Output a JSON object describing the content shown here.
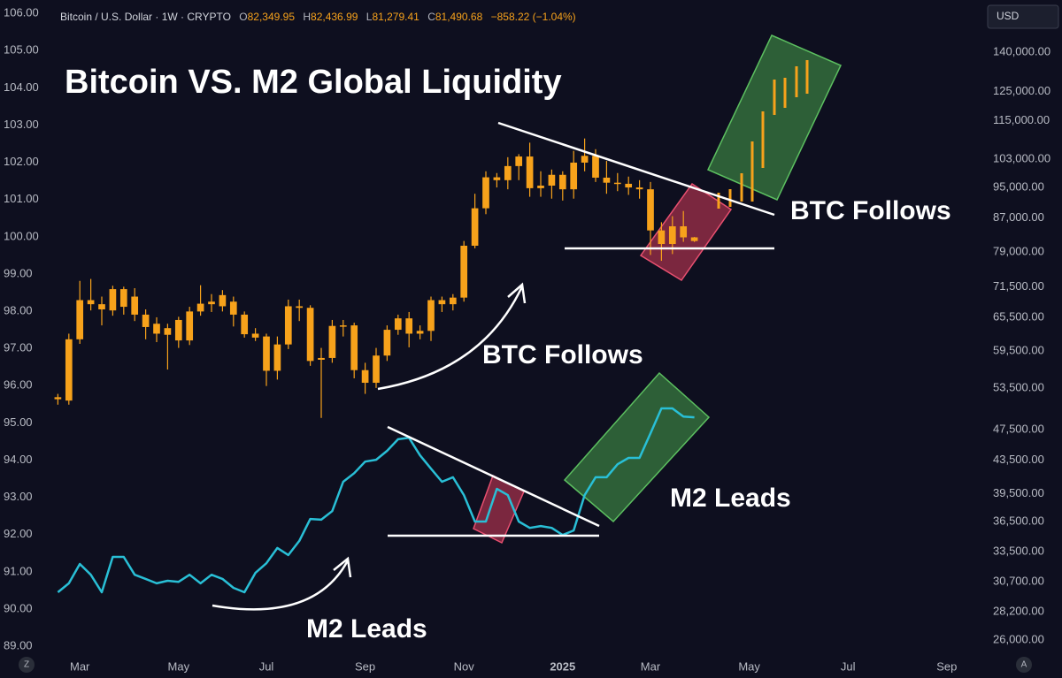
{
  "chart_data": {
    "type": "candlestick",
    "title": "Bitcoin VS. M2 Global Liquidity",
    "header": {
      "symbol": "Bitcoin / U.S. Dollar · 1W · CRYPTO",
      "ohlc": [
        {
          "key": "O",
          "value": "82,349.95"
        },
        {
          "key": "H",
          "value": "82,436.99"
        },
        {
          "key": "L",
          "value": "81,279.41"
        },
        {
          "key": "C",
          "value": "81,490.68"
        }
      ],
      "change": "−858.22 (−1.04%)"
    },
    "currency": "USD",
    "corner_buttons": [
      "Z",
      "A"
    ],
    "annotations": [
      "BTC Follows",
      "BTC Follows",
      "M2 Leads",
      "M2 Leads"
    ],
    "categories": [
      null,
      null,
      null,
      "Mar",
      null,
      null,
      null,
      null,
      null,
      null,
      null,
      null,
      "May",
      null,
      null,
      null,
      null,
      null,
      null,
      null,
      "Jul",
      null,
      null,
      null,
      null,
      null,
      null,
      null,
      null,
      "Sep",
      null,
      null,
      null,
      null,
      null,
      null,
      null,
      null,
      "Nov",
      null,
      null,
      null,
      null,
      null,
      null,
      null,
      null,
      "2025",
      null,
      null,
      null,
      null,
      null,
      null,
      null,
      "Mar",
      null,
      null,
      null,
      null,
      null,
      null,
      null,
      null,
      "May",
      null,
      null,
      null,
      null,
      null,
      null,
      null,
      null,
      "Jul",
      null,
      null,
      null,
      null,
      null,
      null,
      null,
      null,
      "Sep",
      null,
      null,
      null
    ],
    "candles": {
      "color": "#f7a21b",
      "axis": "y2",
      "open": [
        null,
        51800,
        51600,
        61500,
        68800,
        68000,
        66800,
        71000,
        69500,
        66000,
        64300,
        63500,
        65000,
        61300,
        66600,
        68000,
        69800,
        68500,
        66000,
        62500,
        62000,
        56200,
        60600,
        67600,
        67300,
        58000,
        58300,
        63900,
        64000,
        56300,
        54300,
        58700,
        63200,
        65300,
        62500,
        63000,
        68800,
        68000,
        69300,
        80400,
        89500,
        97800,
        97000,
        101000,
        103800,
        94800,
        95500,
        98500,
        94500,
        102000,
        104000,
        97700,
        96300,
        96000,
        95000,
        94500,
        84000,
        80800,
        85000,
        82349.95,
        null,
        null,
        null,
        null,
        null,
        null,
        null,
        null,
        null,
        null,
        null,
        null,
        null,
        null,
        null,
        null,
        null,
        null,
        null,
        null,
        null,
        null,
        null,
        null,
        null,
        null
      ],
      "high": [
        null,
        52600,
        62500,
        72700,
        73100,
        69500,
        71700,
        71500,
        71200,
        67000,
        65500,
        64300,
        65600,
        67500,
        71800,
        70000,
        70800,
        69500,
        66600,
        63500,
        62500,
        62000,
        68900,
        68900,
        67800,
        60000,
        65000,
        65000,
        64500,
        57500,
        60000,
        64000,
        66000,
        66500,
        64000,
        69500,
        69500,
        70000,
        81500,
        93300,
        99500,
        99000,
        103600,
        104500,
        108000,
        99500,
        100000,
        99500,
        105500,
        109300,
        106000,
        102500,
        99000,
        98000,
        97000,
        96500,
        86000,
        87500,
        88800,
        82436.99,
        null,
        null,
        null,
        null,
        null,
        null,
        null,
        null,
        null,
        null,
        null,
        null,
        null,
        null,
        null,
        null,
        null,
        null,
        null,
        null,
        null,
        null,
        null,
        null,
        null,
        null
      ],
      "low": [
        null,
        51000,
        51000,
        60700,
        66800,
        64000,
        65800,
        66000,
        64800,
        61500,
        61000,
        56400,
        60000,
        60500,
        65800,
        66500,
        66600,
        63800,
        61800,
        61200,
        53800,
        54800,
        59800,
        64800,
        57000,
        49100,
        57500,
        62000,
        55000,
        52600,
        53500,
        57800,
        62300,
        60100,
        61500,
        61200,
        66500,
        66800,
        68500,
        79800,
        88000,
        95000,
        94500,
        97000,
        92500,
        92500,
        92000,
        91500,
        92000,
        99500,
        96500,
        93300,
        94000,
        93000,
        92000,
        78300,
        77000,
        78500,
        81300,
        81279.41,
        null,
        null,
        null,
        null,
        null,
        null,
        null,
        null,
        null,
        null,
        null,
        null,
        null,
        null,
        null,
        null,
        null,
        null,
        null,
        null,
        null,
        null,
        null,
        null,
        null,
        null
      ],
      "close": [
        null,
        52100,
        61500,
        68800,
        68000,
        67000,
        71000,
        67500,
        66000,
        63700,
        62500,
        62300,
        61300,
        66600,
        68100,
        68500,
        67600,
        66000,
        62400,
        61800,
        56200,
        60600,
        67600,
        67300,
        57800,
        58300,
        63900,
        64000,
        56300,
        54300,
        58700,
        63200,
        65300,
        62500,
        63000,
        68800,
        68000,
        69300,
        80400,
        89500,
        97800,
        97000,
        101000,
        103800,
        94800,
        95500,
        98500,
        94500,
        102000,
        104000,
        97700,
        96300,
        96000,
        95000,
        94500,
        84000,
        80800,
        85000,
        82348.9,
        81490.68,
        null,
        null,
        null,
        null,
        null,
        null,
        null,
        null,
        null,
        null,
        null,
        null,
        null,
        null,
        null,
        null,
        null,
        null,
        null,
        null,
        null,
        null,
        null,
        null,
        null,
        null
      ]
    },
    "series": [
      {
        "type": "line",
        "color": "#29bfd6",
        "axis": "y",
        "values": [
          null,
          90.45,
          90.69,
          91.21,
          90.92,
          90.45,
          91.4,
          91.4,
          90.92,
          90.81,
          90.69,
          90.76,
          90.73,
          90.92,
          90.69,
          90.92,
          90.81,
          90.57,
          90.45,
          90.97,
          91.23,
          91.64,
          91.45,
          91.83,
          92.42,
          92.4,
          92.63,
          93.42,
          93.65,
          93.96,
          94.01,
          94.25,
          94.56,
          94.6,
          94.13,
          93.77,
          93.42,
          93.54,
          93.06,
          92.35,
          92.35,
          93.23,
          93.06,
          92.35,
          92.18,
          92.23,
          92.18,
          91.99,
          92.11,
          93.06,
          93.54,
          93.54,
          93.89,
          94.06,
          94.06,
          94.72,
          95.39,
          95.39,
          95.17,
          95.15,
          null,
          null,
          null,
          null,
          null,
          null,
          null,
          null,
          null,
          null,
          null,
          null,
          null,
          null,
          null,
          null,
          null,
          null,
          null,
          null,
          null,
          null,
          null,
          null,
          null,
          null
        ]
      }
    ],
    "ylim": [
      88.67,
      106.36
    ],
    "yticks": [
      {
        "value": 89,
        "label": "89.00"
      },
      {
        "value": 90,
        "label": "90.00"
      },
      {
        "value": 91,
        "label": "91.00"
      },
      {
        "value": 92,
        "label": "92.00"
      },
      {
        "value": 93,
        "label": "93.00"
      },
      {
        "value": 94,
        "label": "94.00"
      },
      {
        "value": 95,
        "label": "95.00"
      },
      {
        "value": 96,
        "label": "96.00"
      },
      {
        "value": 97,
        "label": "97.00"
      },
      {
        "value": 98,
        "label": "98.00"
      },
      {
        "value": 99,
        "label": "99.00"
      },
      {
        "value": 100,
        "label": "100.00"
      },
      {
        "value": 101,
        "label": "101.00"
      },
      {
        "value": 102,
        "label": "102.00"
      },
      {
        "value": 103,
        "label": "103.00"
      },
      {
        "value": 104,
        "label": "104.00"
      },
      {
        "value": 105,
        "label": "105.00"
      },
      {
        "value": 106,
        "label": "106.00"
      }
    ],
    "y2lim": [
      24650,
      162500
    ],
    "y2scale": "log",
    "y2ticks": [
      {
        "value": 26000,
        "label": "26,000.00"
      },
      {
        "value": 28200,
        "label": "28,200.00"
      },
      {
        "value": 30700,
        "label": "30,700.00"
      },
      {
        "value": 33500,
        "label": "33,500.00"
      },
      {
        "value": 36500,
        "label": "36,500.00"
      },
      {
        "value": 39500,
        "label": "39,500.00"
      },
      {
        "value": 43500,
        "label": "43,500.00"
      },
      {
        "value": 47500,
        "label": "47,500.00"
      },
      {
        "value": 53500,
        "label": "53,500.00"
      },
      {
        "value": 59500,
        "label": "59,500.00"
      },
      {
        "value": 65500,
        "label": "65,500.00"
      },
      {
        "value": 71500,
        "label": "71,500.00"
      },
      {
        "value": 79000,
        "label": "79,000.00"
      },
      {
        "value": 87000,
        "label": "87,000.00"
      },
      {
        "value": 95000,
        "label": "95,000.00"
      },
      {
        "value": 103000,
        "label": "103,000.00"
      },
      {
        "value": 115000,
        "label": "115,000.00"
      },
      {
        "value": 125000,
        "label": "125,000.00"
      },
      {
        "value": 140000,
        "label": "140,000.00"
      }
    ],
    "grid": false
  }
}
